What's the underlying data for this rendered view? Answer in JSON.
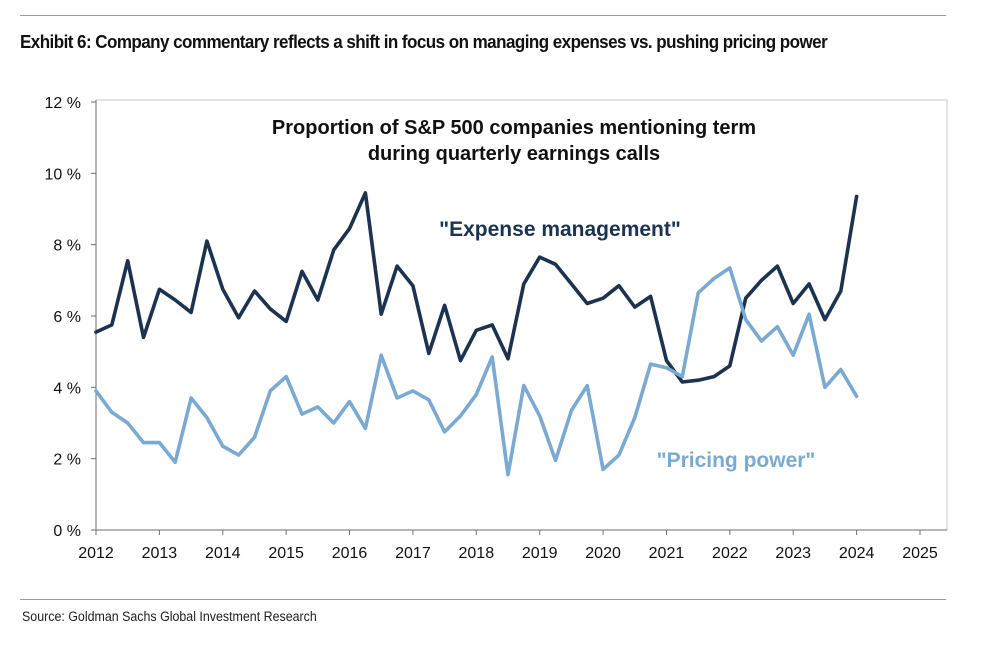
{
  "exhibit_title": "Exhibit 6: Company commentary reflects a shift in focus on managing expenses vs. pushing pricing power",
  "source": "Source: Goldman Sachs Global Investment Research",
  "colors": {
    "expense": "#1b3350",
    "pricing": "#7aa9d2",
    "axis": "#6e6e6e",
    "text": "#111111"
  },
  "chart_data": {
    "type": "line",
    "title_lines": [
      "Proportion of S&P 500 companies mentioning term",
      "during quarterly earnings calls"
    ],
    "xlim": [
      2012,
      2025
    ],
    "ylim": [
      0,
      12
    ],
    "x_ticks": [
      "2012",
      "2013",
      "2014",
      "2015",
      "2016",
      "2017",
      "2018",
      "2019",
      "2020",
      "2021",
      "2022",
      "2023",
      "2024",
      "2025"
    ],
    "y_ticks": [
      "0 %",
      "2 %",
      "4 %",
      "6 %",
      "8 %",
      "10 %",
      "12 %"
    ],
    "grid": false,
    "legend": "inline labels",
    "series": [
      {
        "name": "\"Expense management\"",
        "x": [
          2012.0,
          2012.25,
          2012.5,
          2012.75,
          2013.0,
          2013.25,
          2013.5,
          2013.75,
          2014.0,
          2014.25,
          2014.5,
          2014.75,
          2015.0,
          2015.25,
          2015.5,
          2015.75,
          2016.0,
          2016.25,
          2016.5,
          2016.75,
          2017.0,
          2017.25,
          2017.5,
          2017.75,
          2018.0,
          2018.25,
          2018.5,
          2018.75,
          2019.0,
          2019.25,
          2019.5,
          2019.75,
          2020.0,
          2020.25,
          2020.5,
          2020.75,
          2021.0,
          2021.25,
          2021.5,
          2021.75,
          2022.0,
          2022.25,
          2022.5,
          2022.75,
          2023.0,
          2023.25,
          2023.5,
          2023.75,
          2024.0
        ],
        "values": [
          5.55,
          5.75,
          7.55,
          5.4,
          6.75,
          6.45,
          6.1,
          8.1,
          6.75,
          5.95,
          6.7,
          6.2,
          5.85,
          7.25,
          6.45,
          7.85,
          8.45,
          9.45,
          6.05,
          7.4,
          6.85,
          4.95,
          6.3,
          4.75,
          5.6,
          5.75,
          4.8,
          6.9,
          7.65,
          7.45,
          6.9,
          6.35,
          6.5,
          6.85,
          6.25,
          6.55,
          4.75,
          4.15,
          4.2,
          4.3,
          4.6,
          6.5,
          7.0,
          7.4,
          6.35,
          6.9,
          5.9,
          6.7,
          9.35
        ]
      },
      {
        "name": "\"Pricing power\"",
        "x": [
          2012.0,
          2012.25,
          2012.5,
          2012.75,
          2013.0,
          2013.25,
          2013.5,
          2013.75,
          2014.0,
          2014.25,
          2014.5,
          2014.75,
          2015.0,
          2015.25,
          2015.5,
          2015.75,
          2016.0,
          2016.25,
          2016.5,
          2016.75,
          2017.0,
          2017.25,
          2017.5,
          2017.75,
          2018.0,
          2018.25,
          2018.5,
          2018.75,
          2019.0,
          2019.25,
          2019.5,
          2019.75,
          2020.0,
          2020.25,
          2020.5,
          2020.75,
          2021.0,
          2021.25,
          2021.5,
          2021.75,
          2022.0,
          2022.25,
          2022.5,
          2022.75,
          2023.0,
          2023.25,
          2023.5,
          2023.75,
          2024.0
        ],
        "values": [
          3.9,
          3.3,
          3.0,
          2.45,
          2.45,
          1.9,
          3.7,
          3.15,
          2.35,
          2.1,
          2.6,
          3.9,
          4.3,
          3.25,
          3.45,
          3.0,
          3.6,
          2.85,
          4.9,
          3.7,
          3.9,
          3.65,
          2.75,
          3.2,
          3.8,
          4.85,
          1.55,
          4.05,
          3.2,
          1.95,
          3.35,
          4.05,
          1.7,
          2.1,
          3.15,
          4.65,
          4.55,
          4.3,
          6.65,
          7.05,
          7.35,
          5.9,
          5.3,
          5.7,
          4.9,
          6.05,
          4.0,
          4.5,
          3.75
        ]
      }
    ]
  }
}
